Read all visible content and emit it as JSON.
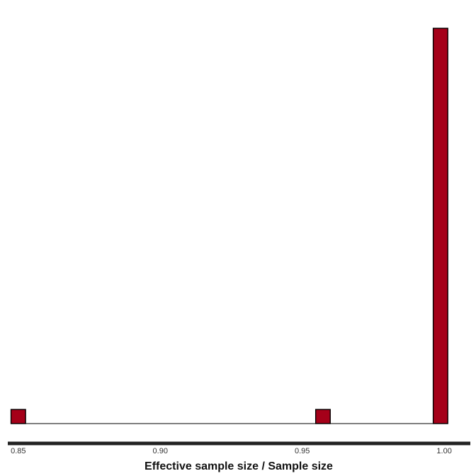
{
  "chart_data": {
    "type": "bar",
    "subtype": "histogram",
    "xlabel": "Effective sample size / Sample size",
    "ylabel": "",
    "title": "",
    "x_ticks": [
      "0.85",
      "0.90",
      "0.95",
      "1.00"
    ],
    "x_tick_values": [
      0.85,
      0.9,
      0.95,
      1.0
    ],
    "xlim": [
      0.8463,
      1.0092
    ],
    "ylim": [
      0,
      29
    ],
    "bin_width": 0.00513,
    "bins": [
      {
        "x": 0.85,
        "count": 1
      },
      {
        "x": 0.9573,
        "count": 1
      },
      {
        "x": 0.9987,
        "count": 28
      }
    ],
    "fill_color": "#a50019",
    "edge_color": "#000000",
    "axis_color": "#222222",
    "grid": false,
    "y_axis_visible": false
  }
}
